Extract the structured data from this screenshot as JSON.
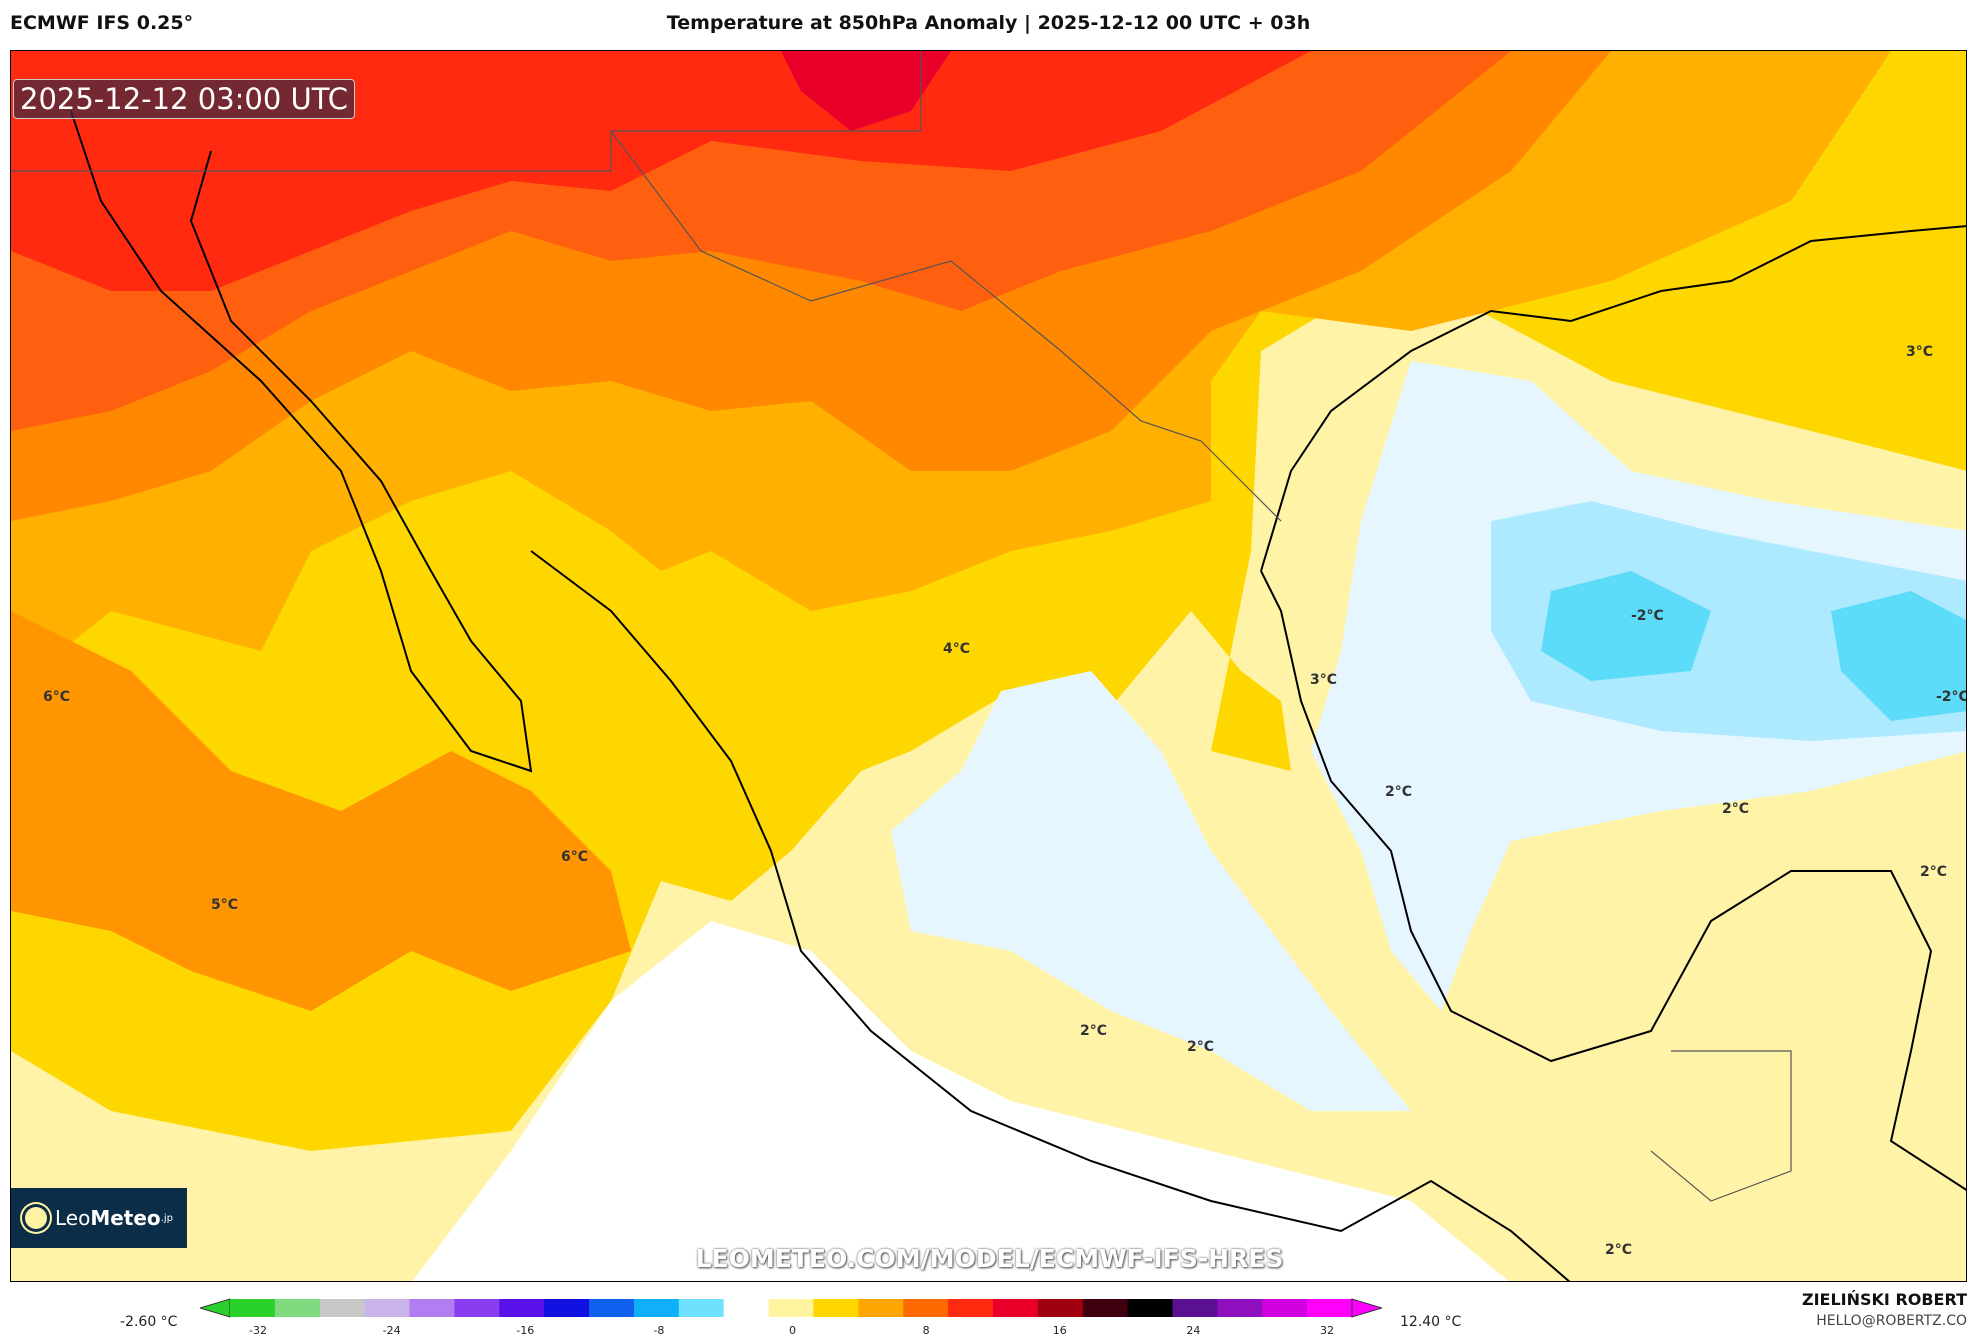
{
  "header": {
    "model": "ECMWF IFS 0.25°",
    "title": "Temperature at 850hPa Anomaly | 2025-12-12 00 UTC + 03h"
  },
  "map": {
    "valid_time": "2025-12-12 03:00 UTC",
    "watermark_url": "LEOMETEO.COM/MODEL/ECMWF-IFS-HRES",
    "logo": {
      "part1": "Leo",
      "part2": "Meteo",
      "suffix": ".jp"
    },
    "contour_labels": [
      "3°C",
      "-2°C",
      "-2°C",
      "3°C",
      "2°C",
      "2°C",
      "2°C",
      "4°C",
      "6°C",
      "6°C",
      "5°C",
      "2°C",
      "2°C",
      "2°C"
    ]
  },
  "colorbar": {
    "min_label": "-2.60 °C",
    "max_label": "12.40 °C",
    "ticks": [
      "-32",
      "-24",
      "-16",
      "-8",
      "0",
      "8",
      "16",
      "24",
      "32"
    ],
    "colors": [
      "#2bd12b",
      "#7fd97f",
      "#c8c8c8",
      "#c9b3e8",
      "#b07ef0",
      "#8a3cf0",
      "#5a10e8",
      "#1010e0",
      "#1060f0",
      "#10b0f8",
      "#70e0ff",
      "#ffffff",
      "#fff3a0",
      "#ffd700",
      "#ffa500",
      "#ff6a00",
      "#ff2a10",
      "#e8002a",
      "#a00010",
      "#400010",
      "#000000",
      "#5a1090",
      "#9010c0",
      "#d000e0",
      "#ff00ff"
    ]
  },
  "author": {
    "name": "ZIELIŃSKI ROBERT",
    "email": "HELLO@ROBERTZ.CO"
  }
}
